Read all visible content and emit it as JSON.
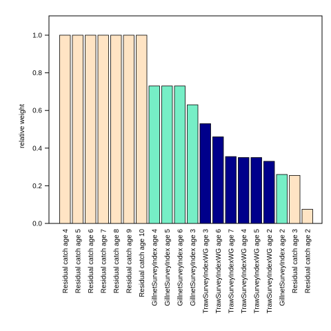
{
  "chart_data": {
    "type": "bar",
    "title": "",
    "xlabel": "",
    "ylabel": "relative weight",
    "ylim": [
      0,
      1.1
    ],
    "yticks": [
      "0.0",
      "0.2",
      "0.4",
      "0.6",
      "0.8",
      "1.0"
    ],
    "grid": false,
    "legend": "none",
    "colors": {
      "Residual catch": "#FFE4C4",
      "GillnetSurveyIndex": "#76EEC6",
      "TrawlSurveyIndexWG": "#00008B"
    },
    "bars": [
      {
        "label": "Residual catch age 4",
        "value": 1.0,
        "group": "Residual catch"
      },
      {
        "label": "Residual catch age 5",
        "value": 1.0,
        "group": "Residual catch"
      },
      {
        "label": "Residual catch age 6",
        "value": 1.0,
        "group": "Residual catch"
      },
      {
        "label": "Residual catch age 7",
        "value": 1.0,
        "group": "Residual catch"
      },
      {
        "label": "Residual catch age 8",
        "value": 1.0,
        "group": "Residual catch"
      },
      {
        "label": "Residual catch age 9",
        "value": 1.0,
        "group": "Residual catch"
      },
      {
        "label": "Residual catch age 10",
        "value": 1.0,
        "group": "Residual catch"
      },
      {
        "label": "GillnetSurveyIndex age 4",
        "value": 0.73,
        "group": "GillnetSurveyIndex"
      },
      {
        "label": "GillnetSurveyIndex age 5",
        "value": 0.73,
        "group": "GillnetSurveyIndex"
      },
      {
        "label": "GillnetSurveyIndex age 6",
        "value": 0.73,
        "group": "GillnetSurveyIndex"
      },
      {
        "label": "GillnetSurveyIndex age 3",
        "value": 0.63,
        "group": "GillnetSurveyIndex"
      },
      {
        "label": "TrawSurveyIndexWG age 3",
        "value": 0.53,
        "group": "TrawlSurveyIndexWG"
      },
      {
        "label": "TrawSurveyIndexWG age 6",
        "value": 0.46,
        "group": "TrawlSurveyIndexWG"
      },
      {
        "label": "TrawSurveyIndexWG age 7",
        "value": 0.355,
        "group": "TrawlSurveyIndexWG"
      },
      {
        "label": "TrawSurveyIndexWG age 4",
        "value": 0.35,
        "group": "TrawlSurveyIndexWG"
      },
      {
        "label": "TrawSurveyIndexWG age 5",
        "value": 0.35,
        "group": "TrawlSurveyIndexWG"
      },
      {
        "label": "TrawSurveyIndexWG age 2",
        "value": 0.33,
        "group": "TrawlSurveyIndexWG"
      },
      {
        "label": "GillnetSurveyIndex age 2",
        "value": 0.26,
        "group": "GillnetSurveyIndex"
      },
      {
        "label": "Residual catch age 3",
        "value": 0.255,
        "group": "Residual catch"
      },
      {
        "label": "Residual catch age 2",
        "value": 0.075,
        "group": "Residual catch"
      }
    ]
  }
}
